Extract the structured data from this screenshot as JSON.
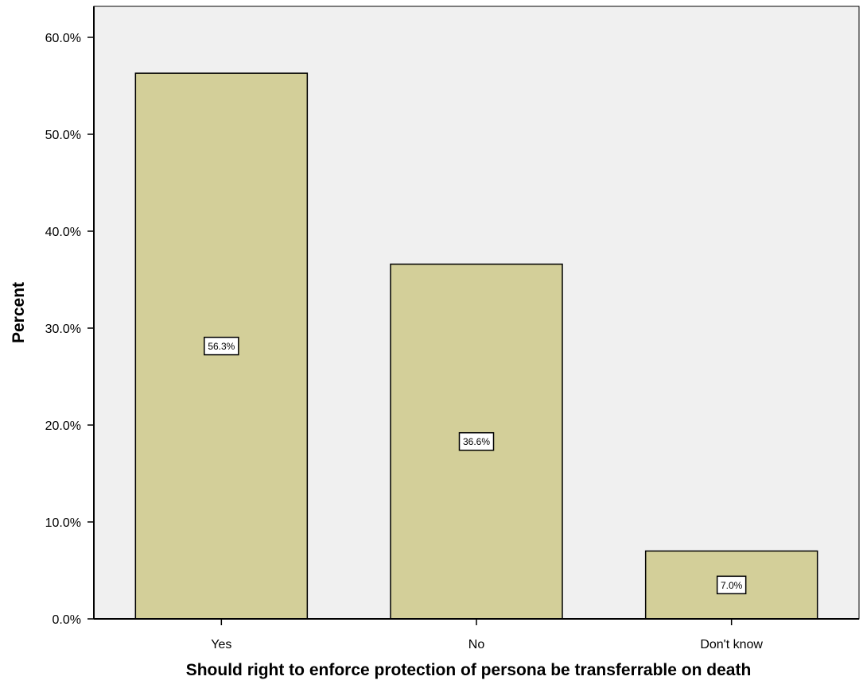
{
  "chart_data": {
    "type": "bar",
    "categories": [
      "Yes",
      "No",
      "Don't know"
    ],
    "values": [
      56.3,
      36.6,
      7.0
    ],
    "data_labels": [
      "56.3%",
      "36.6%",
      "7.0%"
    ],
    "xlabel": "Should right to enforce protection of persona be transferrable on death",
    "ylabel": "Percent",
    "ylim": [
      0,
      60
    ],
    "yticks": [
      0,
      10,
      20,
      30,
      40,
      50,
      60
    ],
    "ytick_labels": [
      "0.0%",
      "10.0%",
      "20.0%",
      "30.0%",
      "40.0%",
      "50.0%",
      "60.0%"
    ],
    "grid": false,
    "colors": {
      "plot_background": "#f0f0f0",
      "bar_fill": "#d3cf99",
      "bar_stroke": "#000000",
      "label_box": "#ffffff"
    }
  }
}
